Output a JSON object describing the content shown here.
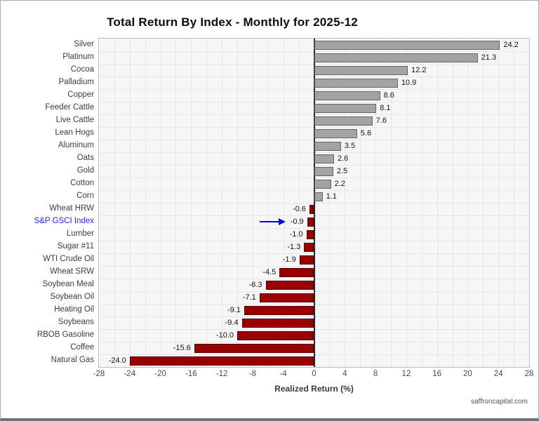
{
  "title": "Total Return By Index - Monthly for 2025-12",
  "watermark": "saffroncapital.com",
  "chart_data": {
    "type": "bar",
    "orientation": "horizontal",
    "title": "Total Return By Index - Monthly for 2025-12",
    "xlabel": "Realized Return (%)",
    "ylabel": "",
    "xlim": [
      -28,
      28
    ],
    "x_ticks": [
      -28,
      -24,
      -20,
      -16,
      -12,
      -8,
      -4,
      0,
      4,
      8,
      12,
      16,
      20,
      24,
      28
    ],
    "grid": true,
    "categories": [
      "Silver",
      "Platinum",
      "Cocoa",
      "Palladium",
      "Copper",
      "Feeder Cattle",
      "Live Cattle",
      "Lean Hogs",
      "Aluminum",
      "Oats",
      "Gold",
      "Cotton",
      "Corn",
      "Wheat HRW",
      "S&P GSCI Index",
      "Lumber",
      "Sugar #11",
      "WTI Crude Oil",
      "Wheat SRW",
      "Soybean Meal",
      "Soybean Oil",
      "Heating Oil",
      "Soybeans",
      "RBOB Gasoline",
      "Coffee",
      "Natural Gas"
    ],
    "values": [
      24.2,
      21.3,
      12.2,
      10.9,
      8.6,
      8.1,
      7.6,
      5.6,
      3.5,
      2.6,
      2.5,
      2.2,
      1.1,
      -0.6,
      -0.9,
      -1.0,
      -1.3,
      -1.9,
      -4.5,
      -6.3,
      -7.1,
      -9.1,
      -9.4,
      -10.0,
      -15.6,
      -24.0
    ],
    "value_labels": [
      "24.2",
      "21.3",
      "12.2",
      "10.9",
      "8.6",
      "8.1",
      "7.6",
      "5.6",
      "3.5",
      "2.6",
      "2.5",
      "2.2",
      "1.1",
      "-0.6",
      "-0.9",
      "-1.0",
      "-1.3",
      "-1.9",
      "-4.5",
      "-6.3",
      "-7.1",
      "-9.1",
      "-9.4",
      "-10.0",
      "-15.6",
      "-24.0"
    ],
    "colors": {
      "positive_fill": "#a3a3a3",
      "positive_border": "#666666",
      "negative_fill": "#9b0000",
      "negative_border": "#500000",
      "plot_background": "#f6f6f6",
      "gridline": "#e7e7e7",
      "zero_line": "#2b2b2b"
    },
    "highlight": {
      "category": "S&P GSCI Index",
      "index": 14,
      "label_color": "#2424f0",
      "arrow_color": "#0000ee"
    }
  }
}
